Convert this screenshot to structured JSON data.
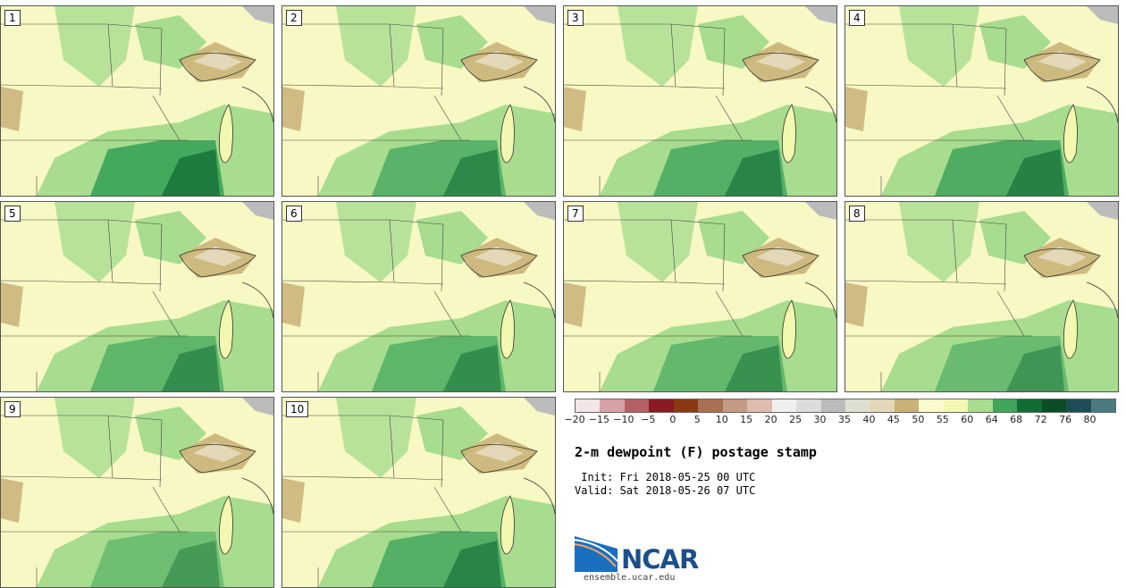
{
  "stamps": [
    {
      "label": "1",
      "tint": 0.95
    },
    {
      "label": "2",
      "tint": 0.75
    },
    {
      "label": "3",
      "tint": 0.8
    },
    {
      "label": "4",
      "tint": 0.85
    },
    {
      "label": "5",
      "tint": 0.7
    },
    {
      "label": "6",
      "tint": 0.7
    },
    {
      "label": "7",
      "tint": 0.65
    },
    {
      "label": "8",
      "tint": 0.6
    },
    {
      "label": "9",
      "tint": 0.55
    },
    {
      "label": "10",
      "tint": 0.8
    }
  ],
  "colorbar": {
    "colors": [
      "#f2e6e6",
      "#d5a3a5",
      "#b46065",
      "#8c1a22",
      "#8a3a0e",
      "#a87050",
      "#c49a84",
      "#dcbdb0",
      "#efefef",
      "#dcdcdc",
      "#bcbcbc",
      "#dde0d0",
      "#e3d8b8",
      "#c9b277",
      "#fafacc",
      "#f3f8b0",
      "#a8dc8e",
      "#3fa55b",
      "#116d36",
      "#0a4d25",
      "#1c4f55",
      "#4a7b80"
    ],
    "ticks": [
      "−20",
      "−15",
      "−10",
      "−5",
      "0",
      "5",
      "10",
      "15",
      "20",
      "25",
      "30",
      "35",
      "40",
      "45",
      "50",
      "55",
      "60",
      "64",
      "68",
      "72",
      "76",
      "80"
    ]
  },
  "title": "2-m dewpoint (F) postage stamp",
  "init": " Init: Fri 2018-05-25 00 UTC",
  "valid": "Valid: Sat 2018-05-26 07 UTC",
  "logo": {
    "name": "NCAR",
    "url": "ensemble.ucar.edu"
  }
}
